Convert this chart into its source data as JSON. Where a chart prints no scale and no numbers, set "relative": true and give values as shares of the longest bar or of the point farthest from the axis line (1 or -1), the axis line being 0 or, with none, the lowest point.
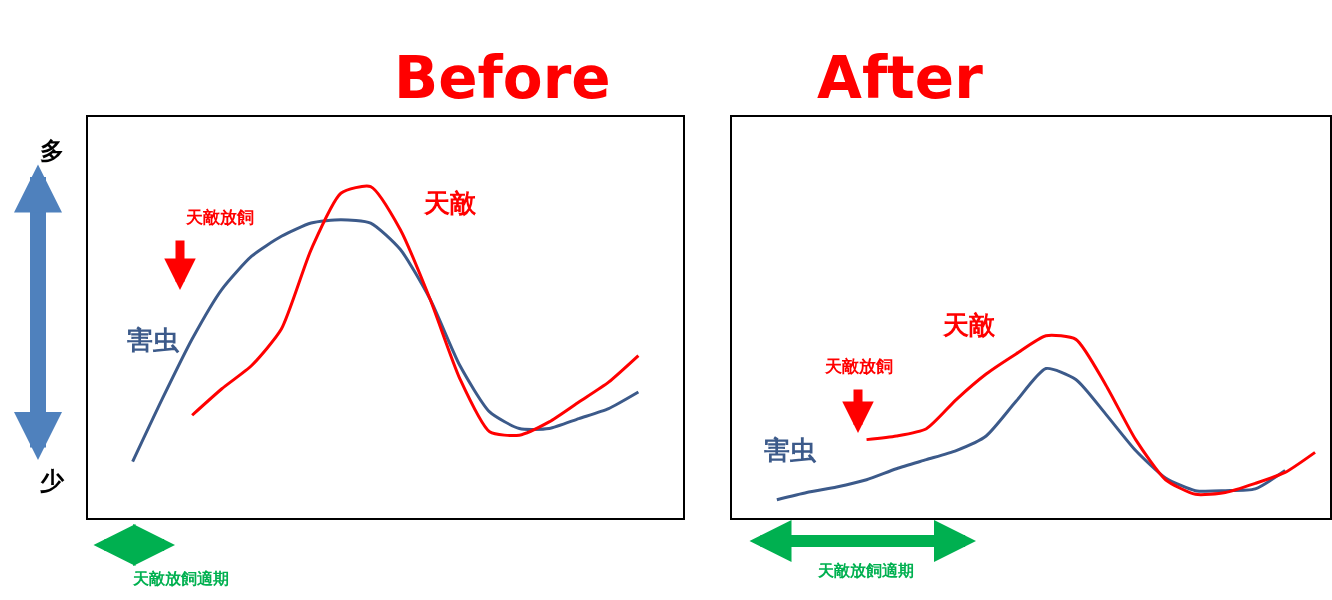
{
  "chart_data": [
    {
      "type": "line",
      "title": "Before",
      "relative": true,
      "legend": false,
      "marker": "none",
      "categories": [
        null,
        null,
        null,
        null,
        null,
        null,
        null,
        null,
        null,
        null,
        null,
        null,
        null,
        null,
        null,
        null,
        null,
        null,
        null,
        null
      ],
      "series": [
        {
          "name": "害虫",
          "color": "#3c5a8a",
          "values": [
            null,
            0.17,
            0.36,
            0.54,
            0.69,
            0.79,
            0.85,
            0.89,
            0.9,
            0.89,
            0.81,
            0.66,
            0.46,
            0.32,
            0.27,
            0.27,
            0.3,
            0.33,
            0.38,
            null
          ]
        },
        {
          "name": "天敵",
          "color": "#ff0000",
          "values": [
            null,
            null,
            null,
            0.31,
            0.39,
            0.46,
            0.57,
            0.81,
            0.98,
            1.0,
            0.87,
            0.66,
            0.42,
            0.26,
            0.25,
            0.29,
            0.35,
            0.41,
            0.49,
            null
          ]
        }
      ],
      "annotations": [
        "天敵放飼",
        "天敵放飼適期",
        "多",
        "少"
      ]
    },
    {
      "type": "line",
      "title": "After",
      "relative": true,
      "legend": false,
      "marker": "none",
      "categories": [
        null,
        null,
        null,
        null,
        null,
        null,
        null,
        null,
        null,
        null,
        null,
        null,
        null,
        null,
        null,
        null,
        null,
        null,
        null,
        null
      ],
      "series": [
        {
          "name": "害虫",
          "color": "#3c5a8a",
          "values": [
            null,
            0.1,
            0.14,
            0.17,
            0.21,
            0.27,
            0.32,
            0.37,
            0.45,
            0.64,
            0.82,
            0.76,
            0.57,
            0.37,
            0.22,
            0.15,
            0.15,
            0.16,
            0.26,
            null
          ]
        },
        {
          "name": "天敵",
          "color": "#ff0000",
          "values": [
            null,
            null,
            null,
            null,
            0.43,
            0.45,
            0.49,
            0.65,
            0.79,
            0.9,
            1.0,
            0.98,
            0.73,
            0.43,
            0.21,
            0.13,
            0.14,
            0.19,
            0.25,
            0.36
          ]
        }
      ],
      "annotations": [
        "天敵放飼",
        "天敵放飼適期"
      ]
    }
  ]
}
